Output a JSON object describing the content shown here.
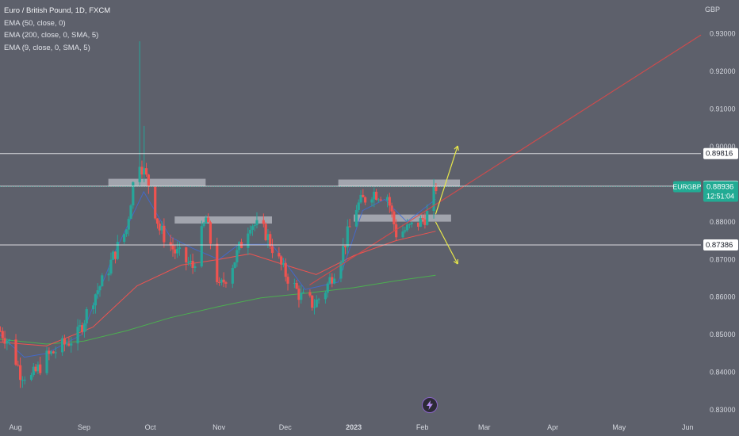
{
  "legend": {
    "title": "Euro / British Pound, 1D, FXCM",
    "indicators": [
      "EMA (50, close, 0)",
      "EMA (200, close, 0, SMA, 5)",
      "EMA (9, close, 0, SMA, 5)"
    ]
  },
  "colors": {
    "up": "#26a69a",
    "down": "#ef5350",
    "ema50": "#ef5350",
    "ema200": "#4caf50",
    "ema9": "#3f6ad8",
    "trend": "#e04848",
    "arrow": "#e8e84a",
    "price_tag": "#22ab94",
    "hline": "#e8e8ec",
    "zone": "#b9bcc4"
  },
  "icons": [
    "bolt-icon"
  ],
  "chart_data": {
    "type": "candlestick",
    "symbol": "EURGBP",
    "currency": "GBP",
    "last_price": "0.88936",
    "countdown": "12:51:04",
    "x": {
      "start": "2022-07-25",
      "end": "2023-06-07",
      "tick_labels": [
        "Aug",
        "Sep",
        "Oct",
        "Nov",
        "Dec",
        "2023",
        "Feb",
        "Mar",
        "Apr",
        "May",
        "Jun"
      ],
      "tick_dates": [
        "2022-08-01",
        "2022-09-01",
        "2022-10-01",
        "2022-11-01",
        "2022-12-01",
        "2023-01-01",
        "2023-02-01",
        "2023-03-01",
        "2023-04-01",
        "2023-05-01",
        "2023-06-01"
      ]
    },
    "y": {
      "min": 0.826,
      "max": 0.939,
      "ticks": [
        0.83,
        0.84,
        0.85,
        0.86,
        0.87,
        0.88,
        0.89,
        0.9,
        0.91,
        0.92,
        0.93
      ],
      "tick_labels": [
        "0.83000",
        "0.84000",
        "0.85000",
        "0.86000",
        "0.87000",
        "0.88000",
        "0.89000",
        "0.90000",
        "0.91000",
        "0.92000",
        "0.93000"
      ]
    },
    "horizontal_lines": [
      {
        "value": 0.89816,
        "label": "0.89816"
      },
      {
        "value": 0.88949,
        "label": "0.88949"
      },
      {
        "value": 0.87386,
        "label": "0.87386"
      }
    ],
    "zones": [
      {
        "from": "2022-09-12",
        "to": "2022-10-26",
        "value": 0.8905
      },
      {
        "from": "2022-10-12",
        "to": "2022-11-25",
        "value": 0.8805
      },
      {
        "from": "2022-12-25",
        "to": "2023-02-18",
        "value": 0.8903
      },
      {
        "from": "2023-01-01",
        "to": "2023-02-14",
        "value": 0.881
      }
    ],
    "trendline": {
      "from_date": "2022-12-12",
      "from_value": 0.8632,
      "to_date": "2023-06-07",
      "to_value": 0.9297
    },
    "ema200": [
      [
        "2022-07-25",
        0.8488
      ],
      [
        "2022-08-15",
        0.8475
      ],
      [
        "2022-09-01",
        0.8483
      ],
      [
        "2022-09-20",
        0.851
      ],
      [
        "2022-10-10",
        0.8545
      ],
      [
        "2022-11-01",
        0.8575
      ],
      [
        "2022-11-20",
        0.8598
      ],
      [
        "2022-12-10",
        0.861
      ],
      [
        "2023-01-01",
        0.8625
      ],
      [
        "2023-01-20",
        0.8643
      ],
      [
        "2023-02-07",
        0.8658
      ]
    ],
    "ema50": [
      [
        "2022-07-25",
        0.848
      ],
      [
        "2022-08-15",
        0.847
      ],
      [
        "2022-09-05",
        0.852
      ],
      [
        "2022-09-25",
        0.863
      ],
      [
        "2022-10-15",
        0.8685
      ],
      [
        "2022-11-01",
        0.87
      ],
      [
        "2022-11-15",
        0.8715
      ],
      [
        "2022-12-01",
        0.8685
      ],
      [
        "2022-12-15",
        0.866
      ],
      [
        "2023-01-01",
        0.871
      ],
      [
        "2023-01-20",
        0.875
      ],
      [
        "2023-02-07",
        0.8775
      ]
    ],
    "ema9": [
      [
        "2022-07-25",
        0.85
      ],
      [
        "2022-08-05",
        0.844
      ],
      [
        "2022-08-15",
        0.845
      ],
      [
        "2022-08-31",
        0.85
      ],
      [
        "2022-09-15",
        0.872
      ],
      [
        "2022-09-28",
        0.888
      ],
      [
        "2022-10-10",
        0.876
      ],
      [
        "2022-10-20",
        0.873
      ],
      [
        "2022-11-01",
        0.87
      ],
      [
        "2022-11-10",
        0.874
      ],
      [
        "2022-11-25",
        0.874
      ],
      [
        "2022-12-10",
        0.862
      ],
      [
        "2022-12-25",
        0.864
      ],
      [
        "2023-01-05",
        0.883
      ],
      [
        "2023-01-15",
        0.886
      ],
      [
        "2023-01-25",
        0.88
      ],
      [
        "2023-02-07",
        0.886
      ]
    ],
    "path": [
      [
        "2022-07-25",
        0.851
      ],
      [
        "2022-07-29",
        0.848
      ],
      [
        "2022-08-03",
        0.84
      ],
      [
        "2022-08-08",
        0.8385
      ],
      [
        "2022-08-15",
        0.844
      ],
      [
        "2022-08-22",
        0.847
      ],
      [
        "2022-08-29",
        0.85
      ],
      [
        "2022-09-05",
        0.86
      ],
      [
        "2022-09-10",
        0.865
      ],
      [
        "2022-09-15",
        0.872
      ],
      [
        "2022-09-20",
        0.878
      ],
      [
        "2022-09-25",
        0.898
      ],
      [
        "2022-09-30",
        0.89
      ],
      [
        "2022-10-05",
        0.878
      ],
      [
        "2022-10-12",
        0.872
      ],
      [
        "2022-10-20",
        0.868
      ],
      [
        "2022-10-26",
        0.881
      ],
      [
        "2022-11-01",
        0.862
      ],
      [
        "2022-11-08",
        0.87
      ],
      [
        "2022-11-15",
        0.88
      ],
      [
        "2022-11-22",
        0.877
      ],
      [
        "2022-11-30",
        0.867
      ],
      [
        "2022-12-08",
        0.86
      ],
      [
        "2022-12-14",
        0.858
      ],
      [
        "2022-12-19",
        0.862
      ],
      [
        "2022-12-26",
        0.871
      ],
      [
        "2023-01-02",
        0.884
      ],
      [
        "2023-01-09",
        0.888
      ],
      [
        "2023-01-16",
        0.887
      ],
      [
        "2023-01-20",
        0.877
      ],
      [
        "2023-01-25",
        0.878
      ],
      [
        "2023-01-31",
        0.88
      ],
      [
        "2023-02-03",
        0.882
      ],
      [
        "2023-02-07",
        0.8894
      ]
    ],
    "arrows": [
      {
        "from_date": "2023-02-07",
        "from_value": 0.882,
        "to_date": "2023-02-17",
        "to_value": 0.9002
      },
      {
        "from_date": "2023-02-07",
        "from_value": 0.88,
        "to_date": "2023-02-17",
        "to_value": 0.8688
      }
    ]
  }
}
